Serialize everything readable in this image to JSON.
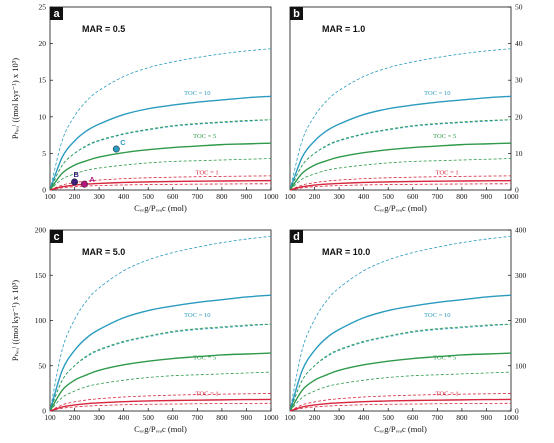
{
  "figure": {
    "panel_letters": [
      "a",
      "b",
      "c",
      "d"
    ],
    "mar_labels": [
      "MAR = 0.5",
      "MAR = 1.0",
      "MAR = 5.0",
      "MAR = 10.0"
    ],
    "xlabel": "Cₒᵣg/Pᵣₑₐc (mol)",
    "ylabel": "Pₕₑᵤˡ ((mol kyr⁻¹) x 10³)",
    "curve_label_toc10": "TOC = 10",
    "curve_label_toc5": "TOC = 5",
    "curve_label_toc1": "TOC = 1",
    "colors": {
      "toc10": "#2a9bbf",
      "toc5": "#2e9a4a",
      "toc1": "#d7263d",
      "axis": "#111111"
    }
  },
  "chart_data": [
    {
      "type": "line",
      "panel": "a",
      "title": "MAR = 0.5",
      "xlabel": "C_org/P_reac (mol)",
      "ylabel": "P_bur ((mol kyr-1) x 10^3)",
      "xlim": [
        100,
        1000
      ],
      "ylim": [
        0,
        25
      ],
      "x_ticks": [
        100,
        200,
        300,
        400,
        500,
        600,
        700,
        800,
        900,
        1000
      ],
      "y_ticks": [
        0,
        5,
        10,
        15,
        20,
        25
      ],
      "y_tick_side": "left",
      "x": [
        100,
        150,
        200,
        250,
        300,
        400,
        500,
        600,
        700,
        800,
        900,
        1000
      ],
      "series": [
        {
          "name": "TOC = 10",
          "style": "solid",
          "color": "#2a9bbf",
          "values": [
            0,
            4.5,
            6.7,
            8.1,
            9.0,
            10.3,
            11.1,
            11.6,
            12.0,
            12.3,
            12.6,
            12.8
          ]
        },
        {
          "style": "dashed",
          "color": "#2a9bbf",
          "values": [
            0,
            6.8,
            10.1,
            12.2,
            13.6,
            15.5,
            16.7,
            17.5,
            18.1,
            18.6,
            19.0,
            19.3
          ]
        },
        {
          "style": "dashed",
          "color": "#2a9bbf",
          "values": [
            0,
            3.4,
            5.0,
            6.0,
            6.7,
            7.6,
            8.2,
            8.7,
            9.0,
            9.2,
            9.4,
            9.6
          ]
        },
        {
          "name": "TOC = 5",
          "style": "solid",
          "color": "#2e9a4a",
          "values": [
            0,
            2.3,
            3.4,
            4.0,
            4.5,
            5.1,
            5.5,
            5.8,
            6.0,
            6.2,
            6.3,
            6.4
          ]
        },
        {
          "style": "dashed",
          "color": "#2e9a4a",
          "values": [
            0,
            3.4,
            5.0,
            6.1,
            6.8,
            7.7,
            8.3,
            8.8,
            9.1,
            9.3,
            9.5,
            9.6
          ]
        },
        {
          "style": "dashed",
          "color": "#2e9a4a",
          "values": [
            0,
            1.5,
            2.2,
            2.7,
            3.0,
            3.4,
            3.7,
            3.9,
            4.0,
            4.1,
            4.2,
            4.3
          ]
        },
        {
          "name": "TOC = 1",
          "style": "solid",
          "color": "#d7263d",
          "values": [
            0,
            0.45,
            0.67,
            0.81,
            0.9,
            1.03,
            1.11,
            1.16,
            1.2,
            1.23,
            1.26,
            1.28
          ]
        },
        {
          "style": "dashed",
          "color": "#d7263d",
          "values": [
            0,
            0.68,
            1.0,
            1.22,
            1.36,
            1.55,
            1.67,
            1.75,
            1.81,
            1.86,
            1.9,
            1.93
          ]
        },
        {
          "style": "dashed",
          "color": "#d7263d",
          "values": [
            0,
            0.3,
            0.45,
            0.54,
            0.6,
            0.69,
            0.74,
            0.77,
            0.8,
            0.82,
            0.84,
            0.85
          ]
        }
      ],
      "points": [
        {
          "label": "A",
          "x": 240,
          "y": 0.8,
          "color": "#b5147a"
        },
        {
          "label": "B",
          "x": 200,
          "y": 1.1,
          "color": "#3b1f7a"
        },
        {
          "label": "C",
          "x": 370,
          "y": 5.6,
          "color": "#2a9bbf"
        }
      ]
    },
    {
      "type": "line",
      "panel": "b",
      "title": "MAR = 1.0",
      "xlabel": "C_org/P_reac (mol)",
      "xlim": [
        100,
        1000
      ],
      "ylim": [
        0,
        50
      ],
      "x_ticks": [
        100,
        200,
        300,
        400,
        500,
        600,
        700,
        800,
        900,
        1000
      ],
      "y_ticks": [
        0,
        10,
        20,
        30,
        40,
        50
      ],
      "y_tick_side": "right",
      "x": [
        100,
        150,
        200,
        250,
        300,
        400,
        500,
        600,
        700,
        800,
        900,
        1000
      ],
      "series": [
        {
          "name": "TOC = 10",
          "style": "solid",
          "color": "#2a9bbf",
          "values": [
            0,
            9.0,
            13.4,
            16.2,
            18.0,
            20.6,
            22.2,
            23.2,
            24.0,
            24.6,
            25.2,
            25.6
          ]
        },
        {
          "style": "dashed",
          "color": "#2a9bbf",
          "values": [
            0,
            13.6,
            20.2,
            24.4,
            27.2,
            31.0,
            33.4,
            35.0,
            36.2,
            37.2,
            38.0,
            38.6
          ]
        },
        {
          "style": "dashed",
          "color": "#2a9bbf",
          "values": [
            0,
            6.8,
            10.0,
            12.0,
            13.4,
            15.2,
            16.4,
            17.4,
            18.0,
            18.4,
            18.8,
            19.2
          ]
        },
        {
          "name": "TOC = 5",
          "style": "solid",
          "color": "#2e9a4a",
          "values": [
            0,
            4.6,
            6.8,
            8.0,
            9.0,
            10.2,
            11.0,
            11.6,
            12.0,
            12.4,
            12.6,
            12.8
          ]
        },
        {
          "style": "dashed",
          "color": "#2e9a4a",
          "values": [
            0,
            6.8,
            10.0,
            12.2,
            13.6,
            15.4,
            16.6,
            17.6,
            18.2,
            18.6,
            19.0,
            19.2
          ]
        },
        {
          "style": "dashed",
          "color": "#2e9a4a",
          "values": [
            0,
            3.0,
            4.4,
            5.4,
            6.0,
            6.8,
            7.4,
            7.8,
            8.0,
            8.2,
            8.4,
            8.6
          ]
        },
        {
          "name": "TOC = 1",
          "style": "solid",
          "color": "#d7263d",
          "values": [
            0,
            0.9,
            1.34,
            1.62,
            1.8,
            2.06,
            2.22,
            2.32,
            2.4,
            2.46,
            2.52,
            2.56
          ]
        },
        {
          "style": "dashed",
          "color": "#d7263d",
          "values": [
            0,
            1.36,
            2.0,
            2.44,
            2.72,
            3.1,
            3.34,
            3.5,
            3.62,
            3.72,
            3.8,
            3.86
          ]
        },
        {
          "style": "dashed",
          "color": "#d7263d",
          "values": [
            0,
            0.6,
            0.9,
            1.08,
            1.2,
            1.38,
            1.48,
            1.54,
            1.6,
            1.64,
            1.68,
            1.7
          ]
        }
      ]
    },
    {
      "type": "line",
      "panel": "c",
      "title": "MAR = 5.0",
      "xlabel": "C_org/P_reac (mol)",
      "ylabel": "P_bur ((mol kyr-1) x 10^3)",
      "xlim": [
        100,
        1000
      ],
      "ylim": [
        0,
        200
      ],
      "x_ticks": [
        100,
        200,
        300,
        400,
        500,
        600,
        700,
        800,
        900,
        1000
      ],
      "y_ticks": [
        0,
        50,
        100,
        150,
        200
      ],
      "y_tick_side": "left",
      "x": [
        100,
        150,
        200,
        250,
        300,
        400,
        500,
        600,
        700,
        800,
        900,
        1000
      ],
      "series": [
        {
          "name": "TOC = 10",
          "style": "solid",
          "color": "#2a9bbf",
          "values": [
            0,
            45,
            67,
            81,
            90,
            103,
            111,
            116,
            120,
            123,
            126,
            128
          ]
        },
        {
          "style": "dashed",
          "color": "#2a9bbf",
          "values": [
            0,
            68,
            101,
            122,
            136,
            155,
            167,
            175,
            181,
            186,
            190,
            193
          ]
        },
        {
          "style": "dashed",
          "color": "#2a9bbf",
          "values": [
            0,
            34,
            50,
            60,
            67,
            76,
            82,
            87,
            90,
            92,
            94,
            96
          ]
        },
        {
          "name": "TOC = 5",
          "style": "solid",
          "color": "#2e9a4a",
          "values": [
            0,
            23,
            34,
            40,
            45,
            51,
            55,
            58,
            60,
            62,
            63,
            64
          ]
        },
        {
          "style": "dashed",
          "color": "#2e9a4a",
          "values": [
            0,
            34,
            50,
            61,
            68,
            77,
            83,
            88,
            91,
            93,
            95,
            96
          ]
        },
        {
          "style": "dashed",
          "color": "#2e9a4a",
          "values": [
            0,
            15,
            22,
            27,
            30,
            34,
            37,
            39,
            40,
            41,
            42,
            43
          ]
        },
        {
          "name": "TOC = 1",
          "style": "solid",
          "color": "#d7263d",
          "values": [
            0,
            4.5,
            6.7,
            8.1,
            9.0,
            10.3,
            11.1,
            11.6,
            12.0,
            12.3,
            12.6,
            12.8
          ]
        },
        {
          "style": "dashed",
          "color": "#d7263d",
          "values": [
            0,
            6.8,
            10.1,
            12.2,
            13.6,
            15.5,
            16.7,
            17.5,
            18.1,
            18.6,
            19.0,
            19.3
          ]
        },
        {
          "style": "dashed",
          "color": "#d7263d",
          "values": [
            0,
            3.0,
            4.5,
            5.4,
            6.0,
            6.9,
            7.4,
            7.7,
            8.0,
            8.2,
            8.4,
            8.5
          ]
        }
      ]
    },
    {
      "type": "line",
      "panel": "d",
      "title": "MAR = 10.0",
      "xlabel": "C_org/P_reac (mol)",
      "xlim": [
        100,
        1000
      ],
      "ylim": [
        0,
        400
      ],
      "x_ticks": [
        100,
        200,
        300,
        400,
        500,
        600,
        700,
        800,
        900,
        1000
      ],
      "y_ticks": [
        0,
        100,
        200,
        300,
        400
      ],
      "y_tick_side": "right",
      "x": [
        100,
        150,
        200,
        250,
        300,
        400,
        500,
        600,
        700,
        800,
        900,
        1000
      ],
      "series": [
        {
          "name": "TOC = 10",
          "style": "solid",
          "color": "#2a9bbf",
          "values": [
            0,
            90,
            134,
            162,
            180,
            206,
            222,
            232,
            240,
            246,
            252,
            256
          ]
        },
        {
          "style": "dashed",
          "color": "#2a9bbf",
          "values": [
            0,
            136,
            202,
            244,
            272,
            310,
            334,
            350,
            362,
            372,
            380,
            386
          ]
        },
        {
          "style": "dashed",
          "color": "#2a9bbf",
          "values": [
            0,
            68,
            100,
            120,
            134,
            152,
            164,
            174,
            180,
            184,
            188,
            192
          ]
        },
        {
          "name": "TOC = 5",
          "style": "solid",
          "color": "#2e9a4a",
          "values": [
            0,
            46,
            68,
            80,
            90,
            102,
            110,
            116,
            120,
            124,
            126,
            128
          ]
        },
        {
          "style": "dashed",
          "color": "#2e9a4a",
          "values": [
            0,
            68,
            100,
            122,
            136,
            154,
            166,
            176,
            182,
            186,
            190,
            192
          ]
        },
        {
          "style": "dashed",
          "color": "#2e9a4a",
          "values": [
            0,
            30,
            44,
            54,
            60,
            68,
            74,
            78,
            80,
            82,
            84,
            86
          ]
        },
        {
          "name": "TOC = 1",
          "style": "solid",
          "color": "#d7263d",
          "values": [
            0,
            9,
            13.4,
            16.2,
            18,
            20.6,
            22.2,
            23.2,
            24,
            24.6,
            25.2,
            25.6
          ]
        },
        {
          "style": "dashed",
          "color": "#d7263d",
          "values": [
            0,
            13.6,
            20,
            24.4,
            27.2,
            31,
            33.4,
            35,
            36.2,
            37.2,
            38,
            38.6
          ]
        },
        {
          "style": "dashed",
          "color": "#d7263d",
          "values": [
            0,
            6,
            9,
            10.8,
            12,
            13.8,
            14.8,
            15.4,
            16,
            16.4,
            16.8,
            17
          ]
        }
      ]
    }
  ]
}
